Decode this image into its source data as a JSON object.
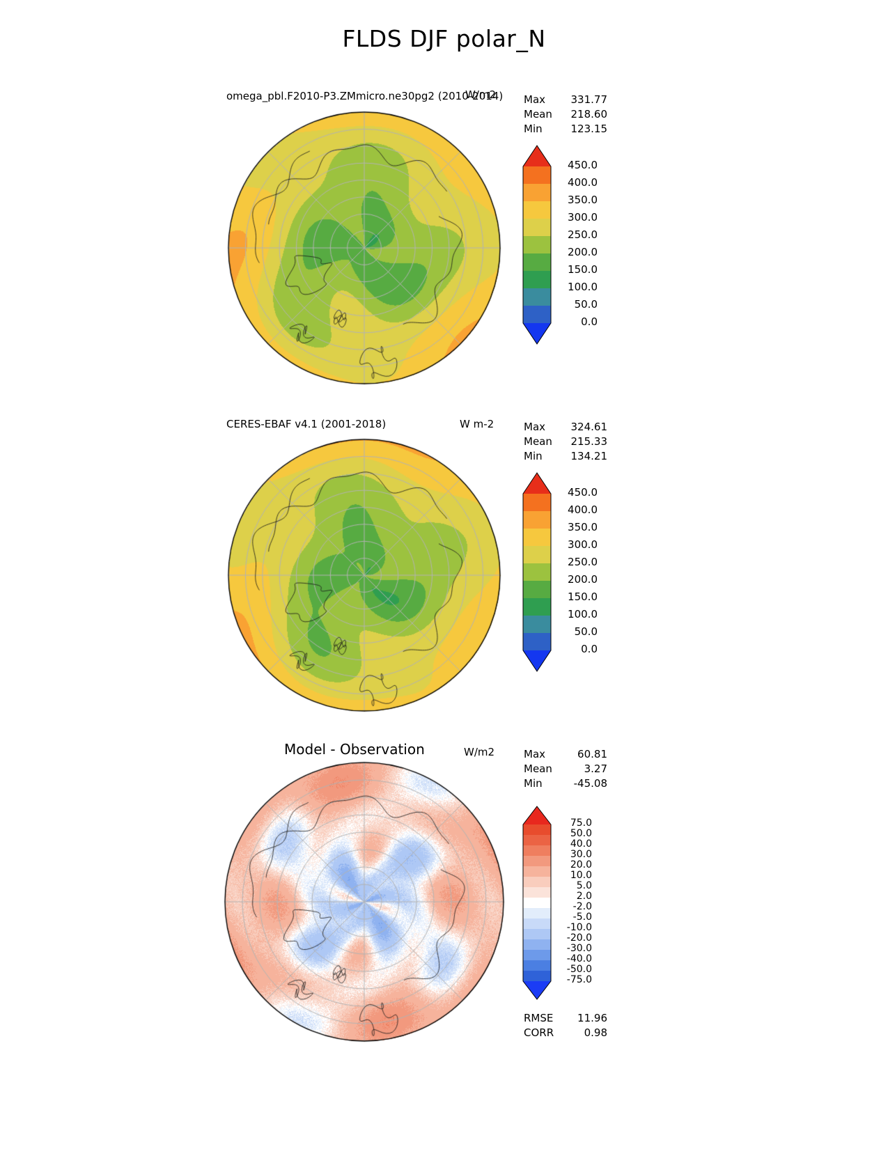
{
  "page_title": "FLDS DJF polar_N",
  "panels": [
    {
      "title": "omega_pbl.F2010-P3.ZMmicro.ne30pg2 (2010-2014)",
      "units": "W/m2",
      "stats": [
        {
          "label": "Max",
          "value": "331.77"
        },
        {
          "label": "Mean",
          "value": "218.60"
        },
        {
          "label": "Min",
          "value": "123.15"
        }
      ]
    },
    {
      "title": "CERES-EBAF v4.1 (2001-2018)",
      "units": "W m-2",
      "stats": [
        {
          "label": "Max",
          "value": "324.61"
        },
        {
          "label": "Mean",
          "value": "215.33"
        },
        {
          "label": "Min",
          "value": "134.21"
        }
      ]
    },
    {
      "title": "Model - Observation",
      "units": "W/m2",
      "stats": [
        {
          "label": "Max",
          "value": "60.81"
        },
        {
          "label": "Mean",
          "value": "3.27"
        },
        {
          "label": "Min",
          "value": "-45.08"
        }
      ],
      "extra_stats": [
        {
          "label": "RMSE",
          "value": "11.96"
        },
        {
          "label": "CORR",
          "value": "0.98"
        }
      ]
    }
  ],
  "chart_data": [
    {
      "type": "heatmap",
      "subtype": "north-polar-stereographic-map",
      "variable": "FLDS",
      "season": "DJF",
      "region": "polar_N",
      "title": "omega_pbl.F2010-P3.ZMmicro.ne30pg2 (2010-2014)",
      "units": "W/m2",
      "stats": {
        "max": 331.77,
        "mean": 218.6,
        "min": 123.15
      },
      "colorbar": {
        "extend": "both",
        "levels": [
          0,
          50,
          100,
          150,
          200,
          250,
          300,
          350,
          400,
          450
        ],
        "tick_labels": [
          "450.0",
          "400.0",
          "350.0",
          "300.0",
          "250.0",
          "200.0",
          "150.0",
          "100.0",
          "50.0",
          "0.0"
        ],
        "colors": [
          "#1437f0",
          "#2e61c6",
          "#3a8c9e",
          "#2f9e50",
          "#57ab42",
          "#9cc23f",
          "#ddd04a",
          "#f6c83e",
          "#f9a233",
          "#f4711f",
          "#e72e1a"
        ]
      }
    },
    {
      "type": "heatmap",
      "subtype": "north-polar-stereographic-map",
      "variable": "FLDS",
      "season": "DJF",
      "region": "polar_N",
      "title": "CERES-EBAF v4.1 (2001-2018)",
      "units": "W m-2",
      "stats": {
        "max": 324.61,
        "mean": 215.33,
        "min": 134.21
      },
      "colorbar": {
        "extend": "both",
        "levels": [
          0,
          50,
          100,
          150,
          200,
          250,
          300,
          350,
          400,
          450
        ],
        "tick_labels": [
          "450.0",
          "400.0",
          "350.0",
          "300.0",
          "250.0",
          "200.0",
          "150.0",
          "100.0",
          "50.0",
          "0.0"
        ],
        "colors": [
          "#1437f0",
          "#2e61c6",
          "#3a8c9e",
          "#2f9e50",
          "#57ab42",
          "#9cc23f",
          "#ddd04a",
          "#f6c83e",
          "#f9a233",
          "#f4711f",
          "#e72e1a"
        ]
      }
    },
    {
      "type": "heatmap",
      "subtype": "north-polar-stereographic-map",
      "variable": "FLDS difference",
      "season": "DJF",
      "region": "polar_N",
      "title": "Model - Observation",
      "units": "W/m2",
      "stats": {
        "max": 60.81,
        "mean": 3.27,
        "min": -45.08
      },
      "rmse": 11.96,
      "corr": 0.98,
      "colorbar": {
        "extend": "both",
        "levels": [
          -75,
          -50,
          -40,
          -30,
          -20,
          -10,
          -5,
          -2,
          2,
          5,
          10,
          20,
          30,
          40,
          50,
          75
        ],
        "tick_labels": [
          "75.0",
          "50.0",
          "40.0",
          "30.0",
          "20.0",
          "10.0",
          "5.0",
          "2.0",
          "-2.0",
          "-5.0",
          "-10.0",
          "-20.0",
          "-30.0",
          "-40.0",
          "-50.0",
          "-75.0"
        ],
        "colors": [
          "#1b3cf5",
          "#2f62d8",
          "#4b7fe2",
          "#6d9aea",
          "#8fb2f0",
          "#aec8f5",
          "#c8daf8",
          "#e2edfb",
          "#ffffff",
          "#fbe3da",
          "#f9cdbd",
          "#f6b39c",
          "#f2997e",
          "#ef7e5f",
          "#eb6344",
          "#e84c2d",
          "#e8281e"
        ]
      }
    }
  ]
}
